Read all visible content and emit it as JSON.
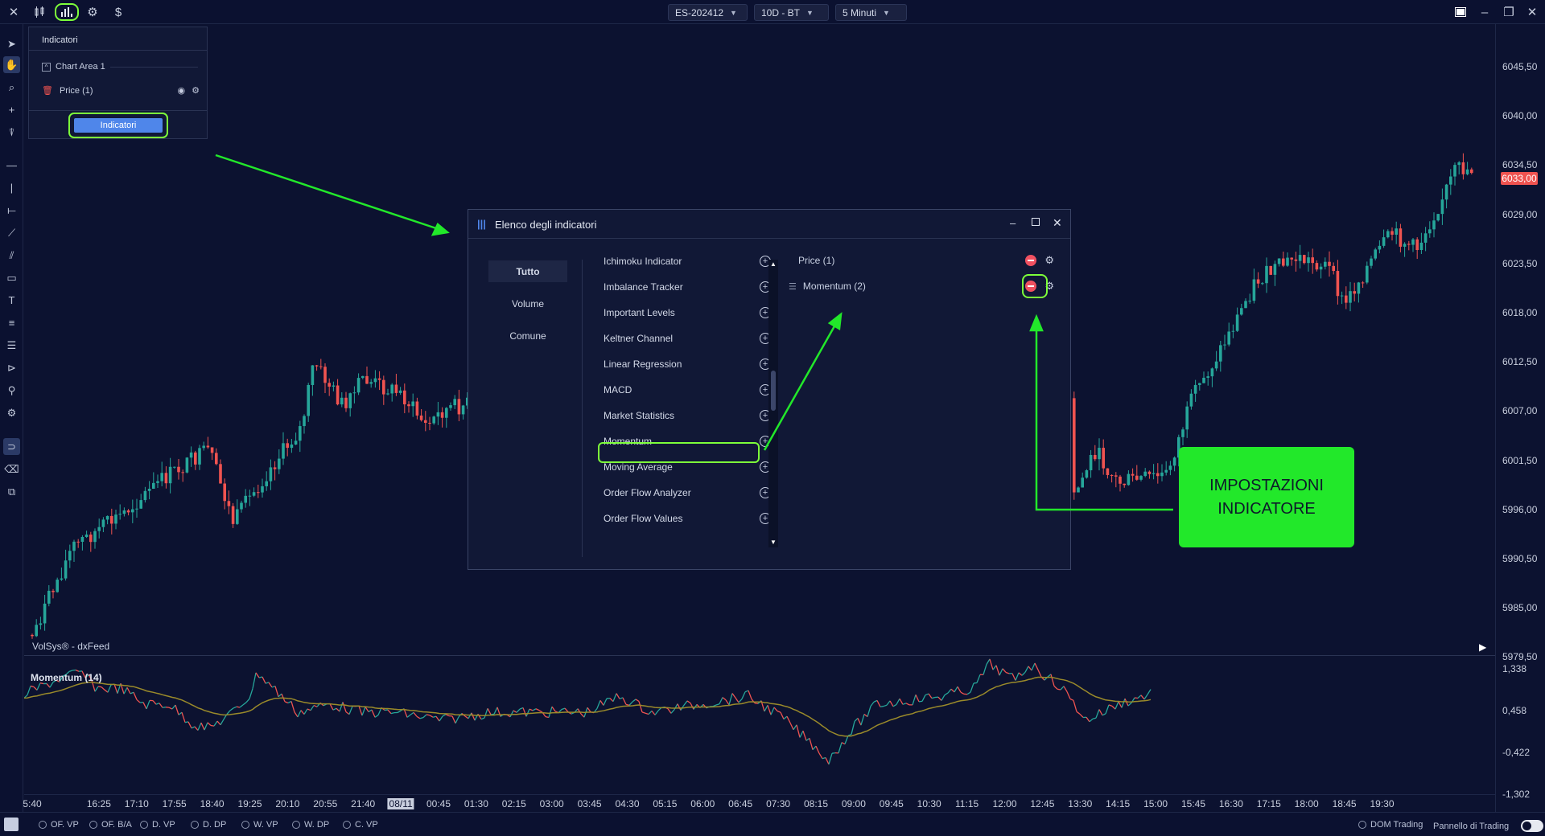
{
  "toolbar": {
    "symbol": "ES-202412",
    "range": "10D - BT",
    "interval": "5 Minuti"
  },
  "indicator_panel": {
    "title": "Indicatori",
    "chart_area": "Chart Area 1",
    "price_item": "Price (1)",
    "button": "Indicatori"
  },
  "modal": {
    "title": "Elenco degli indicatori",
    "categories": [
      "Tutto",
      "Volume",
      "Comune"
    ],
    "indicators": [
      "Ichimoku Indicator",
      "Imbalance Tracker",
      "Important Levels",
      "Keltner Channel",
      "Linear Regression",
      "MACD",
      "Market Statistics",
      "Momentum",
      "Moving Average",
      "Order Flow Analyzer",
      "Order Flow Values"
    ],
    "active": [
      "Price (1)",
      "Momentum (2)"
    ]
  },
  "callout": {
    "line1": "IMPOSTAZIONI",
    "line2": "INDICATORE"
  },
  "chart": {
    "source": "VolSys® - dxFeed",
    "last_price": "6033,00",
    "y_labels": [
      "6045,50",
      "6040,00",
      "6034,50",
      "6029,00",
      "6023,50",
      "6018,00",
      "6012,50",
      "6007,00",
      "6001,50",
      "5996,00",
      "5990,50",
      "5985,00",
      "5979,50"
    ],
    "momentum_title": "Momentum (14)",
    "momentum_labels": [
      "1,338",
      "0,458",
      "-0,422",
      "-1,302"
    ],
    "x_labels": [
      "5:40",
      "16:25",
      "17:10",
      "17:55",
      "18:40",
      "19:25",
      "20:10",
      "20:55",
      "21:40",
      "08/11",
      "00:45",
      "01:30",
      "02:15",
      "03:00",
      "03:45",
      "04:30",
      "05:15",
      "06:00",
      "06:45",
      "07:30",
      "08:15",
      "09:00",
      "09:45",
      "10:30",
      "11:15",
      "12:00",
      "12:45",
      "13:30",
      "14:15",
      "15:00",
      "15:45",
      "16:30",
      "17:15",
      "18:00",
      "18:45",
      "19:30"
    ]
  },
  "bottombar": {
    "items": [
      "OF. VP",
      "OF. B/A",
      "D. VP",
      "D. DP",
      "W. VP",
      "W. DP",
      "C. VP"
    ],
    "dom": "DOM Trading",
    "panel": "Pannello di Trading"
  },
  "colors": {
    "bg": "#0c1230",
    "up": "#26a69a",
    "down": "#ef5350",
    "highlight": "#7dff3a",
    "arrow": "#22e82a",
    "signal": "#9a8a2a"
  }
}
